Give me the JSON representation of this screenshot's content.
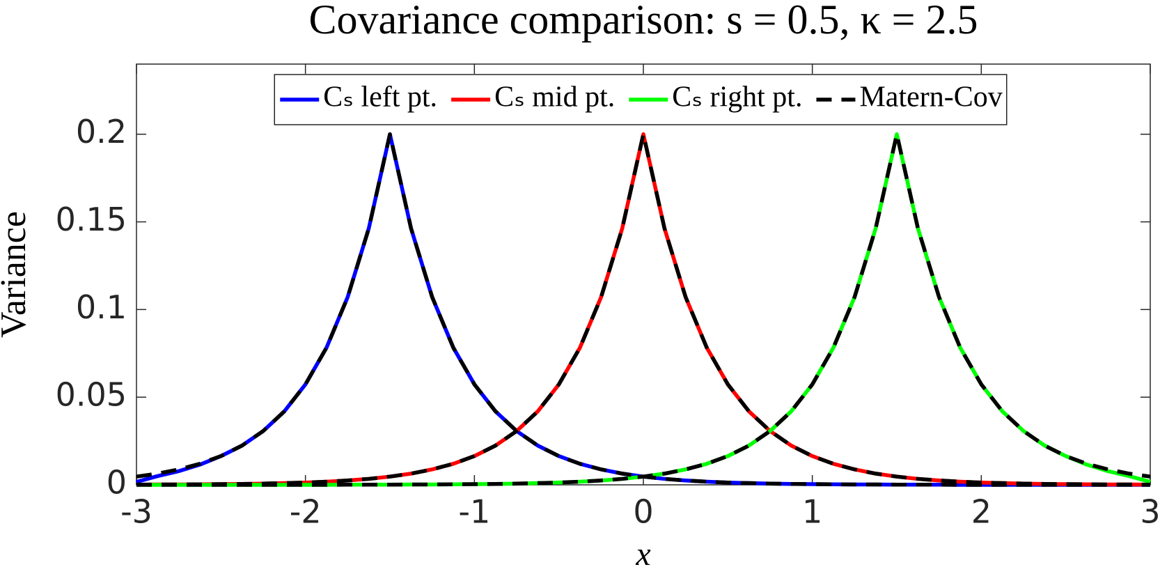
{
  "chart_data": {
    "type": "line",
    "title": "Covariance comparison: s = 0.5, κ = 2.5",
    "xlabel": "x",
    "ylabel": "Variance",
    "x": [
      -3,
      -2.875,
      -2.75,
      -2.625,
      -2.5,
      -2.375,
      -2.25,
      -2.125,
      -2,
      -1.875,
      -1.75,
      -1.625,
      -1.5,
      -1.375,
      -1.25,
      -1.125,
      -1,
      -0.875,
      -0.75,
      -0.625,
      -0.5,
      -0.375,
      -0.25,
      -0.125,
      0,
      0.125,
      0.25,
      0.375,
      0.5,
      0.625,
      0.75,
      0.875,
      1,
      1.125,
      1.25,
      1.375,
      1.5,
      1.625,
      1.75,
      1.875,
      2,
      2.125,
      2.25,
      2.375,
      2.5,
      2.625,
      2.75,
      2.875,
      3
    ],
    "series": [
      {
        "name": "Cₛ left pt.",
        "color": "#0000ff",
        "dashed": false,
        "values": [
          0.0017,
          0.005,
          0.0078,
          0.0115,
          0.0164,
          0.0224,
          0.0307,
          0.0419,
          0.0573,
          0.0783,
          0.1071,
          0.1463,
          0.2,
          0.1463,
          0.1071,
          0.0783,
          0.0573,
          0.0419,
          0.0307,
          0.0224,
          0.0164,
          0.012,
          0.0088,
          0.0064,
          0.0047,
          0.0034,
          0.0025,
          0.0018,
          0.0013,
          0.001,
          0.0007,
          0.0005,
          0.0004,
          0.0003,
          0.0002,
          0.0002,
          0.0001,
          0.0001,
          0.0001,
          0,
          0,
          0,
          0,
          0,
          0,
          0,
          0,
          0,
          0
        ]
      },
      {
        "name": "Cₛ mid pt.",
        "color": "#ff0000",
        "dashed": false,
        "values": [
          0.0001,
          0.0002,
          0.0002,
          0.0003,
          0.0004,
          0.0005,
          0.0007,
          0.001,
          0.0013,
          0.0018,
          0.0025,
          0.0034,
          0.0047,
          0.0064,
          0.0088,
          0.012,
          0.0164,
          0.0224,
          0.0307,
          0.0419,
          0.0573,
          0.0783,
          0.1071,
          0.1463,
          0.2,
          0.1463,
          0.1071,
          0.0783,
          0.0573,
          0.0419,
          0.0307,
          0.0224,
          0.0164,
          0.012,
          0.0088,
          0.0064,
          0.0047,
          0.0034,
          0.0025,
          0.0018,
          0.0013,
          0.001,
          0.0007,
          0.0005,
          0.0004,
          0.0003,
          0.0002,
          0.0002,
          0.0001
        ]
      },
      {
        "name": "Cₛ right pt.",
        "color": "#00ff00",
        "dashed": false,
        "values": [
          0,
          0,
          0,
          0,
          0,
          0,
          0,
          0,
          0,
          0,
          0.0001,
          0.0001,
          0.0001,
          0.0002,
          0.0002,
          0.0003,
          0.0004,
          0.0005,
          0.0007,
          0.001,
          0.0013,
          0.0018,
          0.0025,
          0.0034,
          0.0047,
          0.0064,
          0.0088,
          0.012,
          0.0164,
          0.0224,
          0.0307,
          0.0419,
          0.0573,
          0.0783,
          0.1071,
          0.1463,
          0.2,
          0.1463,
          0.1071,
          0.0783,
          0.0573,
          0.0419,
          0.0307,
          0.0224,
          0.0164,
          0.0115,
          0.0078,
          0.005,
          0.0017
        ]
      },
      {
        "name": "Matern-Cov",
        "color": "#000000",
        "dashed": true,
        "values": [
          [
            0.0047,
            0.0064,
            0.0088,
            0.012,
            0.0164,
            0.0224,
            0.0307,
            0.0419,
            0.0573,
            0.0783,
            0.1071,
            0.1463,
            0.2,
            0.1463,
            0.1071,
            0.0783,
            0.0573,
            0.0419,
            0.0307,
            0.0224,
            0.0164,
            0.012,
            0.0088,
            0.0064,
            0.0047,
            0.0034,
            0.0025,
            0.0018,
            0.0013,
            0.001,
            0.0007,
            0.0005,
            0.0004,
            0.0003,
            0.0002,
            0.0002,
            0.0001,
            0.0001,
            0.0001,
            0,
            0,
            0,
            0,
            0,
            0,
            0,
            0,
            0,
            0
          ],
          [
            0.0001,
            0.0002,
            0.0002,
            0.0003,
            0.0004,
            0.0005,
            0.0007,
            0.001,
            0.0013,
            0.0018,
            0.0025,
            0.0034,
            0.0047,
            0.0064,
            0.0088,
            0.012,
            0.0164,
            0.0224,
            0.0307,
            0.0419,
            0.0573,
            0.0783,
            0.1071,
            0.1463,
            0.2,
            0.1463,
            0.1071,
            0.0783,
            0.0573,
            0.0419,
            0.0307,
            0.0224,
            0.0164,
            0.012,
            0.0088,
            0.0064,
            0.0047,
            0.0034,
            0.0025,
            0.0018,
            0.0013,
            0.001,
            0.0007,
            0.0005,
            0.0004,
            0.0003,
            0.0002,
            0.0002,
            0.0001
          ],
          [
            0,
            0,
            0,
            0,
            0,
            0,
            0,
            0,
            0,
            0,
            0.0001,
            0.0001,
            0.0001,
            0.0002,
            0.0002,
            0.0003,
            0.0004,
            0.0005,
            0.0007,
            0.001,
            0.0013,
            0.0018,
            0.0025,
            0.0034,
            0.0047,
            0.0064,
            0.0088,
            0.012,
            0.0164,
            0.0224,
            0.0307,
            0.0419,
            0.0573,
            0.0783,
            0.1071,
            0.1463,
            0.2,
            0.1463,
            0.1071,
            0.0783,
            0.0573,
            0.0419,
            0.0307,
            0.0224,
            0.0164,
            0.012,
            0.0088,
            0.0064,
            0.0047
          ]
        ]
      }
    ],
    "xlim": [
      -3,
      3
    ],
    "xticks": [
      -3,
      -2,
      -1,
      0,
      1,
      2,
      3
    ],
    "ylim": [
      0,
      0.24
    ],
    "yticks": [
      0,
      0.05,
      0.1,
      0.15,
      0.2
    ],
    "grid": false,
    "legend": "north"
  }
}
